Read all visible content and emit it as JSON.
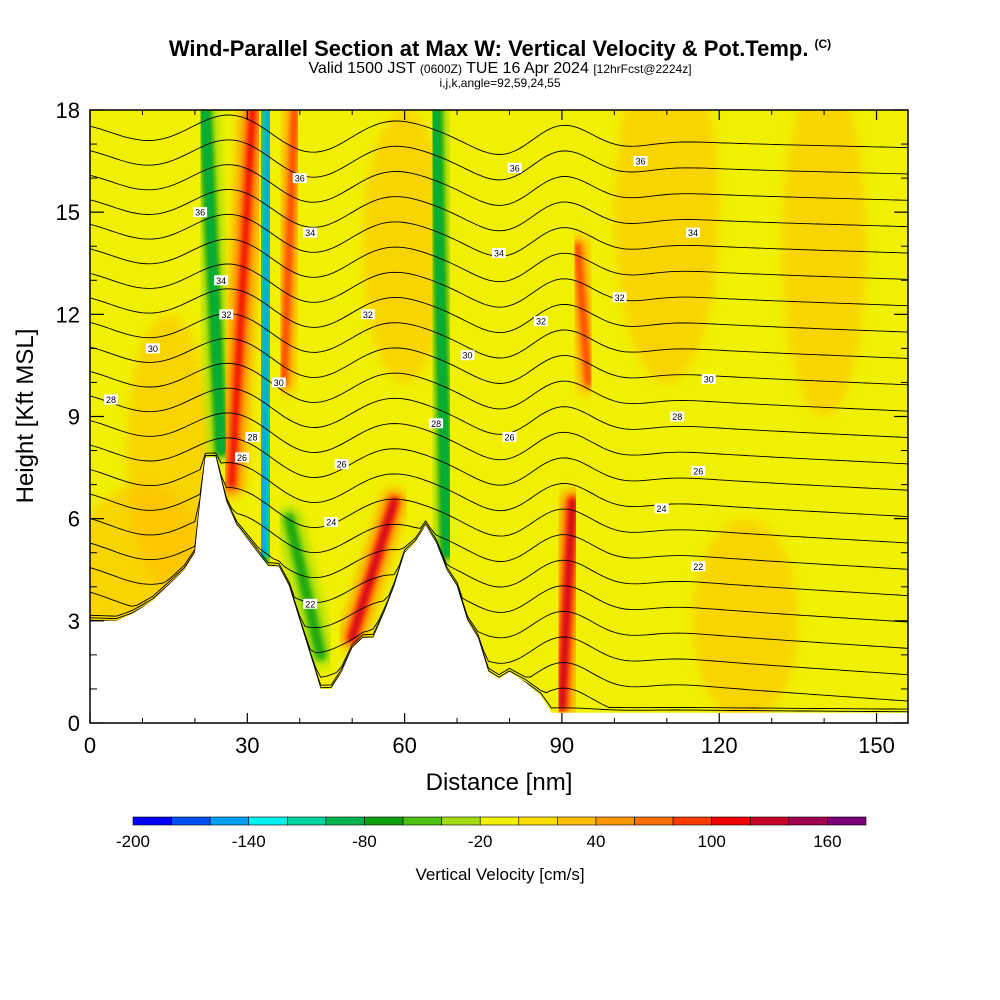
{
  "header": {
    "title": "Wind-Parallel Section at Max W: Vertical Velocity & Pot.Temp.",
    "copyright": "(C)",
    "valid_prefix": "Valid 1500 JST",
    "valid_zulu": "(0600Z)",
    "valid_date": "TUE 16 Apr 2024",
    "forecast": "[12hrFcst@2224z]",
    "grid_info": "i,j,k,angle=92,59,24,55"
  },
  "chart_data": {
    "type": "heatmap",
    "xlabel": "Distance [nm]",
    "ylabel": "Height [Kft MSL]",
    "xlim": [
      0,
      156
    ],
    "ylim": [
      0,
      18
    ],
    "x_ticks": [
      0,
      30,
      60,
      90,
      120,
      150
    ],
    "y_ticks": [
      0,
      3,
      6,
      9,
      12,
      15,
      18
    ],
    "colorbar": {
      "title": "Vertical Velocity [cm/s]",
      "min": -200,
      "max": 180,
      "step": 20,
      "tick_values": [
        -200,
        -140,
        -80,
        -20,
        40,
        100,
        160
      ],
      "tick_labels": [
        "-200",
        "-140",
        "-80",
        "-20",
        "40",
        "100",
        "160"
      ],
      "colors": [
        "#0000f5",
        "#0050f0",
        "#00a0f5",
        "#00f0f0",
        "#00d2a0",
        "#00b450",
        "#10a010",
        "#50c010",
        "#a0dc10",
        "#f0f000",
        "#ffdc00",
        "#ffbe00",
        "#ff9600",
        "#ff6e00",
        "#ff3c00",
        "#f00000",
        "#c80028",
        "#a00050",
        "#780078"
      ]
    },
    "terrain_profile": [
      [
        0,
        3.0
      ],
      [
        5,
        3.0
      ],
      [
        8,
        3.2
      ],
      [
        10,
        3.4
      ],
      [
        12,
        3.6
      ],
      [
        14,
        3.9
      ],
      [
        16,
        4.2
      ],
      [
        18,
        4.5
      ],
      [
        20,
        5.0
      ],
      [
        21,
        6.5
      ],
      [
        22,
        7.8
      ],
      [
        24,
        7.8
      ],
      [
        26,
        6.5
      ],
      [
        28,
        5.8
      ],
      [
        30,
        5.4
      ],
      [
        32,
        5.0
      ],
      [
        34,
        4.6
      ],
      [
        36,
        4.6
      ],
      [
        38,
        4.0
      ],
      [
        40,
        3.0
      ],
      [
        42,
        2.0
      ],
      [
        44,
        1.0
      ],
      [
        46,
        1.0
      ],
      [
        48,
        1.5
      ],
      [
        50,
        2.2
      ],
      [
        52,
        2.5
      ],
      [
        54,
        2.5
      ],
      [
        56,
        3.2
      ],
      [
        58,
        4.0
      ],
      [
        60,
        5.0
      ],
      [
        62,
        5.3
      ],
      [
        64,
        5.8
      ],
      [
        66,
        5.3
      ],
      [
        68,
        4.5
      ],
      [
        70,
        4.0
      ],
      [
        72,
        3.0
      ],
      [
        74,
        2.5
      ],
      [
        76,
        1.5
      ],
      [
        78,
        1.3
      ],
      [
        80,
        1.5
      ],
      [
        83,
        1.2
      ],
      [
        86,
        0.8
      ],
      [
        88,
        0.3
      ],
      [
        90,
        0.3
      ],
      [
        156,
        0.3
      ]
    ],
    "vertical_velocity_features": [
      {
        "kind": "updraft",
        "x_base": 50,
        "z_base": 2.5,
        "x_top": 58,
        "z_top": 6.5,
        "max_cm_s": 120
      },
      {
        "kind": "updraft",
        "x_base": 90,
        "z_base": 0.5,
        "x_top": 92,
        "z_top": 6.5,
        "max_cm_s": 120
      },
      {
        "kind": "updraft",
        "x_base": 27,
        "z_base": 7.0,
        "x_top": 31,
        "z_top": 18.0,
        "max_cm_s": 110
      },
      {
        "kind": "updraft",
        "x_base": 37,
        "z_base": 10,
        "x_top": 39,
        "z_top": 18.0,
        "max_cm_s": 80
      },
      {
        "kind": "updraft",
        "x_base": 95,
        "z_base": 10,
        "x_top": 93,
        "z_top": 14.0,
        "max_cm_s": 80
      },
      {
        "kind": "downdraft",
        "x_base": 33,
        "z_base": 5.0,
        "x_top": 34,
        "z_top": 18.0,
        "min_cm_s": -150
      },
      {
        "kind": "downdraft",
        "x_base": 25,
        "z_base": 8.0,
        "x_top": 22,
        "z_top": 18.0,
        "min_cm_s": -100
      },
      {
        "kind": "downdraft",
        "x_base": 68,
        "z_base": 5.0,
        "x_top": 66,
        "z_top": 18.0,
        "min_cm_s": -90
      },
      {
        "kind": "downdraft",
        "x_base": 44,
        "z_base": 2.0,
        "x_top": 38,
        "z_top": 6.0,
        "min_cm_s": -80
      }
    ],
    "theta_contour_labels": [
      {
        "text": "36",
        "x": 21,
        "z": 15.0
      },
      {
        "text": "36",
        "x": 40,
        "z": 16.0
      },
      {
        "text": "36",
        "x": 81,
        "z": 16.3
      },
      {
        "text": "36",
        "x": 105,
        "z": 16.5
      },
      {
        "text": "34",
        "x": 25,
        "z": 13.0
      },
      {
        "text": "34",
        "x": 42,
        "z": 14.4
      },
      {
        "text": "34",
        "x": 78,
        "z": 13.8
      },
      {
        "text": "34",
        "x": 115,
        "z": 14.4
      },
      {
        "text": "32",
        "x": 26,
        "z": 12.0
      },
      {
        "text": "32",
        "x": 53,
        "z": 12.0
      },
      {
        "text": "32",
        "x": 86,
        "z": 11.8
      },
      {
        "text": "32",
        "x": 101,
        "z": 12.5
      },
      {
        "text": "30",
        "x": 12,
        "z": 11.0
      },
      {
        "text": "30",
        "x": 36,
        "z": 10.0
      },
      {
        "text": "30",
        "x": 72,
        "z": 10.8
      },
      {
        "text": "30",
        "x": 118,
        "z": 10.1
      },
      {
        "text": "28",
        "x": 4,
        "z": 9.5
      },
      {
        "text": "28",
        "x": 31,
        "z": 8.4
      },
      {
        "text": "28",
        "x": 66,
        "z": 8.8
      },
      {
        "text": "28",
        "x": 112,
        "z": 9.0
      },
      {
        "text": "26",
        "x": 29,
        "z": 7.8
      },
      {
        "text": "26",
        "x": 48,
        "z": 7.6
      },
      {
        "text": "26",
        "x": 80,
        "z": 8.4
      },
      {
        "text": "26",
        "x": 116,
        "z": 7.4
      },
      {
        "text": "24",
        "x": 46,
        "z": 5.9
      },
      {
        "text": "24",
        "x": 109,
        "z": 6.3
      },
      {
        "text": "22",
        "x": 42,
        "z": 3.5
      },
      {
        "text": "22",
        "x": 116,
        "z": 4.6
      }
    ]
  }
}
